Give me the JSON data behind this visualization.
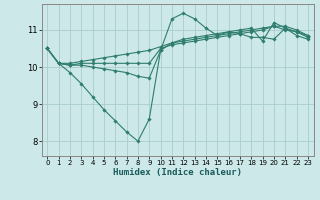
{
  "xlabel": "Humidex (Indice chaleur)",
  "bg_color": "#cce8e8",
  "line_color": "#2e7d6e",
  "grid_color": "#aacccc",
  "xlim": [
    -0.5,
    23.5
  ],
  "ylim": [
    7.6,
    11.7
  ],
  "xticks": [
    0,
    1,
    2,
    3,
    4,
    5,
    6,
    7,
    8,
    9,
    10,
    11,
    12,
    13,
    14,
    15,
    16,
    17,
    18,
    19,
    20,
    21,
    22,
    23
  ],
  "yticks": [
    8,
    9,
    10,
    11
  ],
  "lines": [
    {
      "x": [
        0,
        1,
        2,
        3,
        4,
        5,
        6,
        7,
        8,
        9,
        10,
        11,
        12,
        13,
        14,
        15,
        16,
        17,
        18,
        19,
        20,
        21,
        22,
        23
      ],
      "y": [
        10.5,
        10.1,
        9.85,
        9.55,
        9.2,
        8.85,
        8.55,
        8.25,
        8.0,
        8.6,
        10.45,
        11.3,
        11.45,
        11.3,
        11.05,
        10.85,
        10.95,
        10.9,
        10.8,
        10.8,
        10.75,
        11.05,
        10.85,
        10.75
      ]
    },
    {
      "x": [
        0,
        1,
        2,
        3,
        4,
        5,
        6,
        7,
        8,
        9,
        10,
        11,
        12,
        13,
        14,
        15,
        16,
        17,
        18,
        19,
        20,
        21,
        22,
        23
      ],
      "y": [
        10.5,
        10.1,
        10.05,
        10.05,
        10.0,
        9.95,
        9.9,
        9.85,
        9.75,
        9.7,
        10.45,
        10.65,
        10.75,
        10.8,
        10.85,
        10.9,
        10.95,
        11.0,
        11.05,
        10.7,
        11.2,
        11.05,
        10.95,
        10.8
      ]
    },
    {
      "x": [
        0,
        1,
        2,
        3,
        4,
        5,
        6,
        7,
        8,
        9,
        10,
        11,
        12,
        13,
        14,
        15,
        16,
        17,
        18,
        19,
        20,
        21,
        22,
        23
      ],
      "y": [
        10.5,
        10.1,
        10.1,
        10.15,
        10.2,
        10.25,
        10.3,
        10.35,
        10.4,
        10.45,
        10.55,
        10.65,
        10.7,
        10.75,
        10.8,
        10.85,
        10.9,
        10.95,
        11.0,
        11.05,
        11.1,
        11.0,
        10.95,
        10.85
      ]
    },
    {
      "x": [
        0,
        1,
        2,
        3,
        4,
        5,
        6,
        7,
        8,
        9,
        10,
        11,
        12,
        13,
        14,
        15,
        16,
        17,
        18,
        19,
        20,
        21,
        22,
        23
      ],
      "y": [
        10.5,
        10.1,
        10.05,
        10.1,
        10.1,
        10.1,
        10.1,
        10.1,
        10.1,
        10.1,
        10.5,
        10.6,
        10.65,
        10.7,
        10.75,
        10.8,
        10.85,
        10.9,
        10.95,
        11.0,
        11.1,
        11.1,
        11.0,
        10.85
      ]
    }
  ]
}
